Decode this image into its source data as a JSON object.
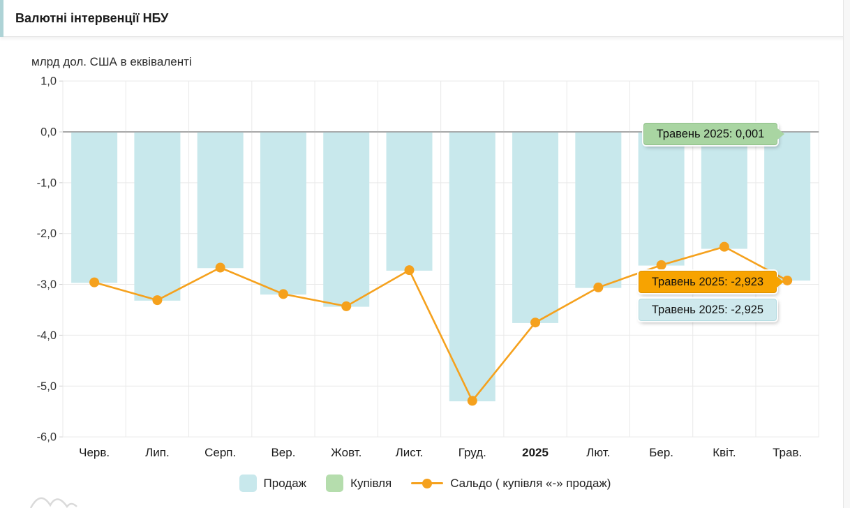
{
  "header": {
    "title": "Валютні інтервенції НБУ"
  },
  "chart_data": {
    "type": "bar",
    "subtype": "bars-with-line-overlay",
    "title": "Валютні інтервенції НБУ",
    "ylabel": "млрд дол. США в еквіваленті",
    "categories": [
      "Черв.",
      "Лип.",
      "Серп.",
      "Вер.",
      "Жовт.",
      "Лист.",
      "Груд.",
      "2025",
      "Лют.",
      "Бер.",
      "Квіт.",
      "Трав."
    ],
    "emphasis_category": "2025",
    "y_tick_values": [
      1,
      0,
      -1,
      -2,
      -3,
      -4,
      -5,
      -6
    ],
    "y_tick_labels": [
      "1,0",
      "0,0",
      "-1,0",
      "-2,0",
      "-3,0",
      "-4,0",
      "-5,0",
      "-6,0"
    ],
    "ylim": [
      -6,
      1
    ],
    "grid": true,
    "legend_position": "bottom",
    "series": [
      {
        "name": "Продаж",
        "type": "bar",
        "color": "#c8e8ec",
        "values": [
          -2.97,
          -3.32,
          -2.68,
          -3.2,
          -3.44,
          -2.73,
          -5.3,
          -3.76,
          -3.07,
          -2.63,
          -2.3,
          -2.925
        ]
      },
      {
        "name": "Купівля",
        "type": "bar",
        "color": "#b5ddad",
        "values": [
          0,
          0,
          0,
          0,
          0,
          0,
          0,
          0,
          0,
          0,
          0,
          0.001
        ]
      },
      {
        "name": "Сальдо ( купівля «-» продаж)",
        "type": "line",
        "color": "#f5a11d",
        "values": [
          -2.96,
          -3.31,
          -2.67,
          -3.19,
          -3.43,
          -2.72,
          -5.29,
          -3.75,
          -3.06,
          -2.62,
          -2.26,
          -2.923
        ]
      }
    ]
  },
  "tooltips": [
    {
      "series": "Купівля",
      "label": "Травень 2025: 0,001",
      "color": "#a9d5a2"
    },
    {
      "series": "Сальдо",
      "label": "Травень 2025: -2,923",
      "color": "#f7a301"
    },
    {
      "series": "Продаж",
      "label": "Травень 2025: -2,925",
      "color": "#cfe9ed"
    }
  ],
  "legend": {
    "items": [
      {
        "label": "Продаж"
      },
      {
        "label": "Купівля"
      },
      {
        "label": "Сальдо ( купівля «-» продаж)"
      }
    ]
  },
  "colors": {
    "bar_sale": "#c8e8ec",
    "bar_buy": "#b5ddad",
    "saldo_line": "#f5a11d",
    "zero_line": "#9b9b9b",
    "grid_line": "#e9e9e9",
    "axis_text": "#333333",
    "header_accent": "#aed3d6"
  }
}
